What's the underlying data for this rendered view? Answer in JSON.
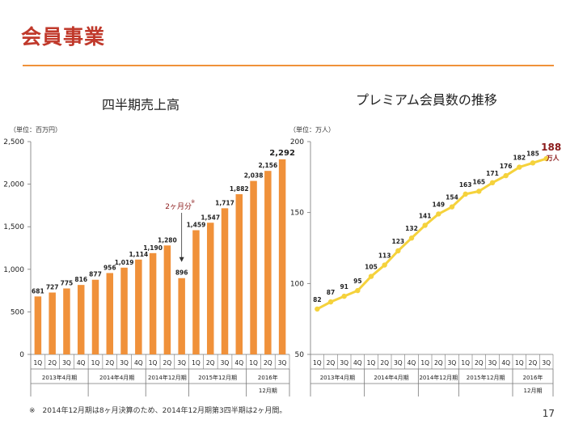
{
  "page": {
    "title": "会員事業",
    "footnote": "※　2014年12月期は8ヶ月決算のため、2014年12月期第3四半期は2ヶ月間。",
    "page_number": "17",
    "accent_color": "#f0913a",
    "title_color": "#c0392b",
    "line_color": "#f5d23c"
  },
  "chart_data": [
    {
      "type": "bar",
      "title": "四半期売上高",
      "unit_label": "（単位：百万円）",
      "ylim": [
        0,
        2500
      ],
      "yticks": [
        "0",
        "500",
        "1,000",
        "1,500",
        "2,000",
        "2,500"
      ],
      "grid": false,
      "quarters": [
        "1Q",
        "2Q",
        "3Q",
        "4Q",
        "1Q",
        "2Q",
        "3Q",
        "4Q",
        "1Q",
        "2Q",
        "3Q",
        "1Q",
        "2Q",
        "3Q",
        "4Q",
        "1Q",
        "2Q",
        "3Q"
      ],
      "periods": [
        {
          "label": "2013年4月期",
          "span": 4
        },
        {
          "label": "2014年4月期",
          "span": 4
        },
        {
          "label": "2014年12月期",
          "span": 3
        },
        {
          "label": "2015年12月期",
          "span": 4
        },
        {
          "label": "2016年\n12月期",
          "span": 3
        }
      ],
      "values": [
        681,
        727,
        775,
        816,
        877,
        956,
        1019,
        1114,
        1190,
        1280,
        896,
        1459,
        1547,
        1717,
        1882,
        2038,
        2156,
        2292
      ],
      "labels": [
        "681",
        "727",
        "775",
        "816",
        "877",
        "956",
        "1,019",
        "1,114",
        "1,190",
        "1,280",
        "896",
        "1,459",
        "1,547",
        "1,717",
        "1,882",
        "2,038",
        "2,156",
        "2,292"
      ],
      "annotation": {
        "text": "2ヶ月分",
        "mark": "※"
      }
    },
    {
      "type": "line",
      "title": "プレミアム会員数の推移",
      "unit_label": "（単位：万人）",
      "ylim": [
        50,
        200
      ],
      "yticks": [
        "50",
        "100",
        "150",
        "200"
      ],
      "grid": false,
      "quarters": [
        "1Q",
        "2Q",
        "3Q",
        "4Q",
        "1Q",
        "2Q",
        "3Q",
        "4Q",
        "1Q",
        "2Q",
        "3Q",
        "1Q",
        "2Q",
        "3Q",
        "4Q",
        "1Q",
        "2Q",
        "3Q"
      ],
      "periods": [
        {
          "label": "2013年4月期",
          "span": 4
        },
        {
          "label": "2014年4月期",
          "span": 4
        },
        {
          "label": "2014年12月期",
          "span": 3
        },
        {
          "label": "2015年12月期",
          "span": 4
        },
        {
          "label": "2016年\n12月期",
          "span": 3
        }
      ],
      "values": [
        82,
        87,
        91,
        95,
        105,
        113,
        123,
        132,
        141,
        149,
        154,
        163,
        165,
        171,
        176,
        182,
        185,
        188
      ],
      "last_unit": "万人"
    }
  ]
}
